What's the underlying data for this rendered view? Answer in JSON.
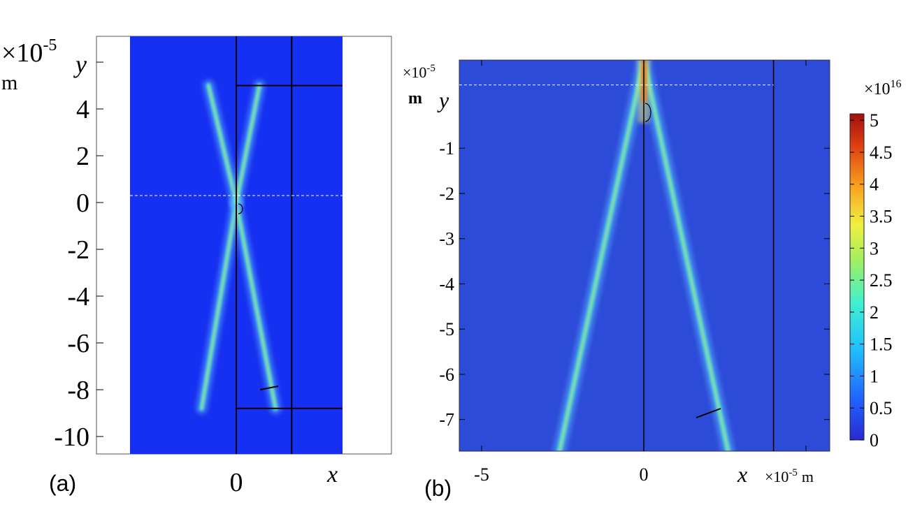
{
  "chart_data": [
    {
      "type": "heatmap",
      "panel_label": "(a)",
      "y_scale_label": "×10",
      "y_scale_exponent": "-5",
      "y_unit": "m",
      "ylabel": "y",
      "xlabel": "x",
      "ylim": [
        -10.8,
        7.2
      ],
      "xlim": [
        -4.6,
        6.6
      ],
      "y_ticks": [
        4,
        2,
        0,
        -2,
        -4,
        -6,
        -8,
        -10
      ],
      "y_tick_labels": [
        "4",
        "2",
        "0",
        "-2",
        "-4",
        "-6",
        "-8",
        "-10"
      ],
      "x_ticks": [
        0
      ],
      "x_tick_labels": [
        "0"
      ],
      "colored_region_x": [
        -4.6,
        4.6
      ],
      "dashed_line_y": 0.3,
      "beams": [
        {
          "name": "left-bottom",
          "from": [
            0,
            0
          ],
          "to": [
            -1.5,
            -8.8
          ]
        },
        {
          "name": "right-bottom",
          "from": [
            0,
            0
          ],
          "to": [
            1.7,
            -8.8
          ]
        },
        {
          "name": "left-top",
          "from": [
            0,
            0
          ],
          "to": [
            -1.2,
            5.0
          ]
        },
        {
          "name": "right-top",
          "from": [
            0,
            0
          ],
          "to": [
            1.0,
            5.0
          ]
        }
      ],
      "boundary_lines": {
        "vertical_x": [
          0,
          2.4
        ],
        "horizontal_y": [
          5.0,
          -8.8
        ],
        "horizontal_x_range": [
          0,
          4.6
        ]
      }
    },
    {
      "type": "heatmap",
      "panel_label": "(b)",
      "y_scale_label": "×10",
      "y_scale_exponent": "-5",
      "y_unit": "m",
      "ylabel": "y",
      "xlabel": "x",
      "x_scale_label": "×10",
      "x_scale_exponent": "-5",
      "x_unit": "m",
      "ylim": [
        -7.7,
        0.95
      ],
      "xlim": [
        -6.45,
        6.45
      ],
      "y_ticks": [
        -1,
        -2,
        -3,
        -4,
        -5,
        -6,
        -7
      ],
      "y_tick_labels": [
        "-1",
        "-2",
        "-3",
        "-4",
        "-5",
        "-6",
        "-7"
      ],
      "x_ticks": [
        -5,
        0
      ],
      "x_tick_labels": [
        "-5",
        "0"
      ],
      "dashed_line_y": 0.4,
      "beams": [
        {
          "name": "left",
          "from": [
            0,
            0.95
          ],
          "to": [
            -2.6,
            -7.7
          ]
        },
        {
          "name": "right",
          "from": [
            0,
            0.95
          ],
          "to": [
            2.6,
            -7.7
          ]
        }
      ],
      "boundary_lines": {
        "vertical_x": [
          0,
          4.0
        ]
      },
      "colorbar": {
        "scale_label": "×10",
        "scale_exponent": "16",
        "ticks": [
          5,
          4.5,
          4,
          3.5,
          3,
          2.5,
          2,
          1.5,
          1,
          0.5,
          0
        ],
        "tick_labels": [
          "5",
          "4.5",
          "4",
          "3.5",
          "3",
          "2.5",
          "2",
          "1.5",
          "1",
          "0.5",
          "0"
        ],
        "range": [
          0,
          5.1
        ],
        "colormap": "jet"
      }
    }
  ],
  "colors": {
    "background_field": "#2b4bd8",
    "field_a": "#1530f0",
    "beam_core": "#f0f060",
    "beam_mid": "#40e0e0",
    "beam_outer": "#60b0ff",
    "peak": "#c02010"
  }
}
